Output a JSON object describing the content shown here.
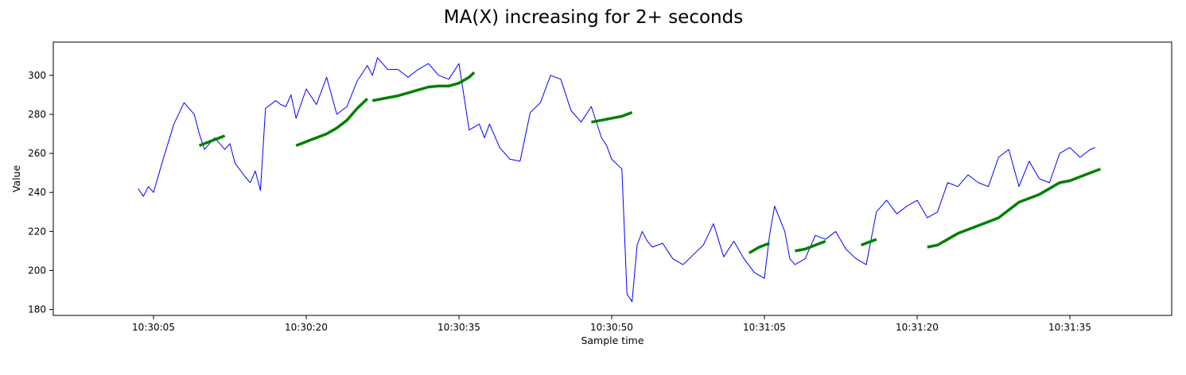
{
  "chart_data": {
    "type": "line",
    "title": "MA(X) increasing for 2+ seconds",
    "xlabel": "Sample time",
    "ylabel": "Value",
    "x_ticks": [
      "10:30:05",
      "10:30:20",
      "10:30:35",
      "10:30:50",
      "10:31:05",
      "10:31:20",
      "10:31:35"
    ],
    "y_ticks": [
      180,
      200,
      220,
      240,
      260,
      280,
      300
    ],
    "ylim": [
      177,
      317
    ],
    "grid": false,
    "colors": {
      "raw": "#0000ff",
      "ma": "#008000"
    },
    "raw_series": {
      "x": [
        "10:30:03.5",
        "10:30:04",
        "10:30:04.5",
        "10:30:05",
        "10:30:06",
        "10:30:07",
        "10:30:08",
        "10:30:09",
        "10:30:09.5",
        "10:30:10",
        "10:30:11",
        "10:30:12",
        "10:30:12.5",
        "10:30:13",
        "10:30:14",
        "10:30:14.5",
        "10:30:15",
        "10:30:15.5",
        "10:30:16",
        "10:30:17",
        "10:30:17.5",
        "10:30:18",
        "10:30:18.5",
        "10:30:19",
        "10:30:20",
        "10:30:21",
        "10:30:22",
        "10:30:23",
        "10:30:24",
        "10:30:25",
        "10:30:26",
        "10:30:26.5",
        "10:30:27",
        "10:30:28",
        "10:30:29",
        "10:30:30",
        "10:30:31",
        "10:30:32",
        "10:30:33",
        "10:30:34",
        "10:30:35",
        "10:30:36",
        "10:30:37",
        "10:30:37.5",
        "10:30:38",
        "10:30:39",
        "10:30:40",
        "10:30:41",
        "10:30:42",
        "10:30:43",
        "10:30:44",
        "10:30:45",
        "10:30:46",
        "10:30:47",
        "10:30:48",
        "10:30:49",
        "10:30:49.5",
        "10:30:50",
        "10:30:51",
        "10:30:51.5",
        "10:30:52",
        "10:30:52.5",
        "10:30:53",
        "10:30:53.5",
        "10:30:54",
        "10:30:55",
        "10:30:56",
        "10:30:57",
        "10:30:58",
        "10:30:59",
        "10:31:00",
        "10:31:01",
        "10:31:02",
        "10:31:03",
        "10:31:04",
        "10:31:05",
        "10:31:05.5",
        "10:31:06",
        "10:31:07",
        "10:31:07.5",
        "10:31:08",
        "10:31:09",
        "10:31:10",
        "10:31:11",
        "10:31:12",
        "10:31:13",
        "10:31:14",
        "10:31:15",
        "10:31:16",
        "10:31:17",
        "10:31:18",
        "10:31:19",
        "10:31:20",
        "10:31:21",
        "10:31:22",
        "10:31:23",
        "10:31:24",
        "10:31:25",
        "10:31:26",
        "10:31:27",
        "10:31:28",
        "10:31:29",
        "10:31:30",
        "10:31:31",
        "10:31:32",
        "10:31:33",
        "10:31:34",
        "10:31:35",
        "10:31:36",
        "10:31:37",
        "10:31:37.5"
      ],
      "y": [
        242,
        238,
        243,
        240,
        258,
        275,
        286,
        280,
        270,
        262,
        268,
        262,
        265,
        255,
        248,
        245,
        251,
        241,
        283,
        287,
        285,
        284,
        290,
        278,
        293,
        285,
        299,
        280,
        284,
        297,
        305,
        300,
        309,
        303,
        303,
        299,
        303,
        306,
        300,
        298,
        306,
        272,
        275,
        268,
        275,
        263,
        257,
        256,
        281,
        286,
        300,
        298,
        282,
        276,
        284,
        268,
        264,
        257,
        252,
        188,
        184,
        213,
        220,
        215,
        212,
        214,
        206,
        203,
        208,
        213,
        224,
        207,
        215,
        206,
        199,
        196,
        218,
        233,
        220,
        206,
        203,
        206,
        218,
        216,
        220,
        211,
        206,
        203,
        230,
        236,
        229,
        233,
        236,
        227,
        230,
        245,
        243,
        249,
        245,
        243,
        258,
        262,
        243,
        256,
        247,
        245,
        260,
        263,
        258,
        262,
        263
      ]
    },
    "ma_segments": [
      {
        "x": [
          "10:30:09.5",
          "10:30:12"
        ],
        "y": [
          264,
          269
        ]
      },
      {
        "x": [
          "10:30:19",
          "10:30:20",
          "10:30:21",
          "10:30:22",
          "10:30:23",
          "10:30:24",
          "10:30:25",
          "10:30:26"
        ],
        "y": [
          264,
          266,
          268,
          270,
          273,
          277,
          283,
          288
        ]
      },
      {
        "x": [
          "10:30:26.5",
          "10:30:27",
          "10:30:28",
          "10:30:29",
          "10:30:30",
          "10:30:31",
          "10:30:32",
          "10:30:33",
          "10:30:34",
          "10:30:35",
          "10:30:36",
          "10:30:36.5"
        ],
        "y": [
          287,
          287.5,
          288.5,
          289.5,
          291,
          292.5,
          294,
          294.5,
          294.5,
          296,
          299,
          301.5
        ]
      },
      {
        "x": [
          "10:30:48",
          "10:30:49",
          "10:30:50",
          "10:30:51",
          "10:30:52"
        ],
        "y": [
          276,
          277,
          278,
          279,
          281
        ]
      },
      {
        "x": [
          "10:31:03.5",
          "10:31:04.5",
          "10:31:05.5"
        ],
        "y": [
          209,
          212,
          214
        ]
      },
      {
        "x": [
          "10:31:08",
          "10:31:09",
          "10:31:10",
          "10:31:11"
        ],
        "y": [
          210,
          211,
          213,
          215
        ]
      },
      {
        "x": [
          "10:31:14.5",
          "10:31:16"
        ],
        "y": [
          213,
          216
        ]
      },
      {
        "x": [
          "10:31:21",
          "10:31:22",
          "10:31:23",
          "10:31:24",
          "10:31:25",
          "10:31:26",
          "10:31:27",
          "10:31:28",
          "10:31:29",
          "10:31:30",
          "10:31:31",
          "10:31:32",
          "10:31:33",
          "10:31:34",
          "10:31:35",
          "10:31:36",
          "10:31:37",
          "10:31:38"
        ],
        "y": [
          212,
          213,
          216,
          219,
          221,
          223,
          225,
          227,
          231,
          235,
          237,
          239,
          242,
          245,
          246,
          248,
          250,
          252
        ]
      }
    ]
  }
}
